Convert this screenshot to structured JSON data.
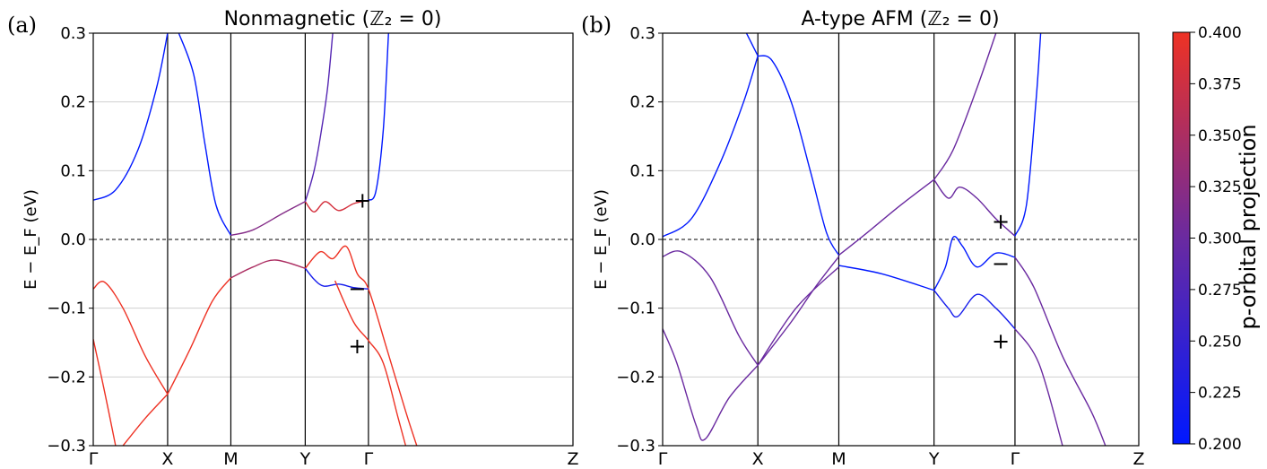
{
  "chart_data": [
    {
      "panel": "(a)",
      "type": "line",
      "title": "Nonmagnetic (ℤ₂ = 0)",
      "ylabel": "E − E_F (eV)",
      "ylim": [
        -0.3,
        0.3
      ],
      "yticks": [
        "0.3",
        "0.2",
        "0.1",
        "0.0",
        "−0.1",
        "−0.2",
        "−0.3"
      ],
      "high_symmetry": [
        {
          "label": "Γ",
          "k": 0.0
        },
        {
          "label": "X",
          "k": 1.0
        },
        {
          "label": "M",
          "k": 1.85
        },
        {
          "label": "Y",
          "k": 2.85
        },
        {
          "label": "Γ",
          "k": 3.7
        },
        {
          "label": "Z",
          "k": 6.45
        }
      ],
      "fermi_level": 0.0,
      "series": [
        {
          "projection": 0.2,
          "points": [
            [
              0,
              0.057
            ],
            [
              0.3,
              0.072
            ],
            [
              0.6,
              0.13
            ],
            [
              0.85,
              0.22
            ],
            [
              1.0,
              0.3
            ]
          ]
        },
        {
          "projection": 0.2,
          "points": [
            [
              1.15,
              0.3
            ],
            [
              1.35,
              0.24
            ],
            [
              1.5,
              0.14
            ],
            [
              1.65,
              0.05
            ],
            [
              1.85,
              0.006
            ]
          ]
        },
        {
          "projection": 0.32,
          "points": [
            [
              1.85,
              0.006
            ],
            [
              2.15,
              0.014
            ],
            [
              2.55,
              0.038
            ],
            [
              2.85,
              0.055
            ]
          ]
        },
        {
          "projection": 0.38,
          "points": [
            [
              2.85,
              0.055
            ],
            [
              2.97,
              0.04
            ],
            [
              3.12,
              0.055
            ],
            [
              3.3,
              0.042
            ],
            [
              3.5,
              0.052
            ],
            [
              3.7,
              0.057
            ]
          ]
        },
        {
          "projection": 0.28,
          "points": [
            [
              2.85,
              0.055
            ],
            [
              2.97,
              0.1
            ],
            [
              3.07,
              0.16
            ],
            [
              3.15,
              0.22
            ],
            [
              3.22,
              0.3
            ]
          ]
        },
        {
          "projection": 0.2,
          "points": [
            [
              3.7,
              0.057
            ],
            [
              3.8,
              0.07
            ],
            [
              3.9,
              0.16
            ],
            [
              3.97,
              0.3
            ]
          ]
        },
        {
          "projection": 0.4,
          "points": [
            [
              0,
              -0.072
            ],
            [
              0.15,
              -0.062
            ],
            [
              0.4,
              -0.1
            ],
            [
              0.7,
              -0.17
            ],
            [
              1.0,
              -0.225
            ]
          ]
        },
        {
          "projection": 0.4,
          "points": [
            [
              1.0,
              -0.225
            ],
            [
              1.3,
              -0.16
            ],
            [
              1.6,
              -0.09
            ],
            [
              1.85,
              -0.056
            ]
          ]
        },
        {
          "projection": 0.35,
          "points": [
            [
              1.85,
              -0.056
            ],
            [
              2.15,
              -0.04
            ],
            [
              2.45,
              -0.03
            ],
            [
              2.85,
              -0.042
            ]
          ]
        },
        {
          "projection": 0.4,
          "points": [
            [
              2.85,
              -0.042
            ],
            [
              3.05,
              -0.018
            ],
            [
              3.22,
              -0.028
            ],
            [
              3.4,
              -0.01
            ],
            [
              3.55,
              -0.05
            ],
            [
              3.7,
              -0.072
            ],
            [
              3.95,
              -0.16
            ],
            [
              4.2,
              -0.25
            ],
            [
              4.35,
              -0.3
            ]
          ]
        },
        {
          "projection": 0.22,
          "points": [
            [
              2.85,
              -0.042
            ],
            [
              2.97,
              -0.058
            ],
            [
              3.1,
              -0.068
            ],
            [
              3.3,
              -0.065
            ],
            [
              3.5,
              -0.07
            ],
            [
              3.7,
              -0.072
            ]
          ]
        },
        {
          "projection": 0.4,
          "points": [
            [
              3.25,
              -0.06
            ],
            [
              3.5,
              -0.12
            ],
            [
              3.7,
              -0.147
            ],
            [
              3.9,
              -0.18
            ],
            [
              4.1,
              -0.26
            ],
            [
              4.2,
              -0.3
            ]
          ]
        },
        {
          "projection": 0.4,
          "points": [
            [
              0,
              -0.145
            ],
            [
              0.15,
              -0.22
            ],
            [
              0.3,
              -0.3
            ]
          ]
        },
        {
          "projection": 0.4,
          "points": [
            [
              0.4,
              -0.3
            ],
            [
              0.7,
              -0.26
            ],
            [
              1.0,
              -0.225
            ]
          ]
        }
      ],
      "annotations": [
        {
          "text": "+",
          "k": 3.62,
          "E": 0.057
        },
        {
          "text": "−",
          "k": 3.55,
          "E": -0.072
        },
        {
          "text": "+",
          "k": 3.55,
          "E": -0.155
        }
      ]
    },
    {
      "panel": "(b)",
      "type": "line",
      "title": "A-type AFM (ℤ₂ = 0)",
      "ylabel": "E − E_F (eV)",
      "ylim": [
        -0.3,
        0.3
      ],
      "yticks": [
        "0.3",
        "0.2",
        "0.1",
        "0.0",
        "−0.1",
        "−0.2",
        "−0.3"
      ],
      "high_symmetry": [
        {
          "label": "Γ",
          "k": 0.0
        },
        {
          "label": "X",
          "k": 1.0
        },
        {
          "label": "M",
          "k": 1.85
        },
        {
          "label": "Y",
          "k": 2.85
        },
        {
          "label": "Γ",
          "k": 3.7
        },
        {
          "label": "Z",
          "k": 5.0
        }
      ],
      "fermi_level": 0.0,
      "series": [
        {
          "projection": 0.2,
          "points": [
            [
              0,
              0.004
            ],
            [
              0.3,
              0.03
            ],
            [
              0.6,
              0.11
            ],
            [
              0.85,
              0.2
            ],
            [
              1.0,
              0.267
            ]
          ]
        },
        {
          "projection": 0.2,
          "points": [
            [
              0.88,
              0.3
            ],
            [
              1.0,
              0.267
            ]
          ]
        },
        {
          "projection": 0.2,
          "points": [
            [
              1.0,
              0.267
            ],
            [
              1.15,
              0.26
            ],
            [
              1.35,
              0.2
            ],
            [
              1.55,
              0.1
            ],
            [
              1.72,
              0.01
            ],
            [
              1.85,
              -0.023
            ]
          ]
        },
        {
          "projection": 0.3,
          "points": [
            [
              1.85,
              -0.023
            ],
            [
              2.15,
              0.01
            ],
            [
              2.5,
              0.05
            ],
            [
              2.85,
              0.087
            ]
          ]
        },
        {
          "projection": 0.3,
          "points": [
            [
              2.85,
              0.087
            ],
            [
              3.0,
              0.06
            ],
            [
              3.12,
              0.076
            ],
            [
              3.3,
              0.06
            ],
            [
              3.5,
              0.03
            ],
            [
              3.7,
              0.005
            ]
          ]
        },
        {
          "projection": 0.3,
          "points": [
            [
              2.85,
              0.087
            ],
            [
              3.05,
              0.13
            ],
            [
              3.3,
              0.22
            ],
            [
              3.5,
              0.3
            ]
          ]
        },
        {
          "projection": 0.2,
          "points": [
            [
              3.7,
              0.005
            ],
            [
              3.82,
              0.05
            ],
            [
              3.92,
              0.2
            ],
            [
              3.97,
              0.3
            ]
          ]
        },
        {
          "projection": 0.3,
          "points": [
            [
              0,
              -0.025
            ],
            [
              0.2,
              -0.018
            ],
            [
              0.5,
              -0.055
            ],
            [
              0.8,
              -0.14
            ],
            [
              1.0,
              -0.183
            ]
          ]
        },
        {
          "projection": 0.3,
          "points": [
            [
              1.0,
              -0.183
            ],
            [
              1.4,
              -0.1
            ],
            [
              1.85,
              -0.04
            ]
          ]
        },
        {
          "projection": 0.2,
          "points": [
            [
              1.85,
              -0.038
            ],
            [
              2.3,
              -0.05
            ],
            [
              2.85,
              -0.074
            ]
          ]
        },
        {
          "projection": 0.2,
          "points": [
            [
              2.85,
              -0.074
            ],
            [
              2.97,
              -0.04
            ],
            [
              3.05,
              0.003
            ],
            [
              3.15,
              -0.01
            ],
            [
              3.3,
              -0.04
            ],
            [
              3.5,
              -0.02
            ],
            [
              3.7,
              -0.026
            ]
          ]
        },
        {
          "projection": 0.22,
          "points": [
            [
              2.85,
              -0.074
            ],
            [
              3.0,
              -0.1
            ],
            [
              3.1,
              -0.112
            ],
            [
              3.3,
              -0.08
            ],
            [
              3.5,
              -0.1
            ],
            [
              3.7,
              -0.13
            ]
          ]
        },
        {
          "projection": 0.3,
          "points": [
            [
              3.7,
              -0.026
            ],
            [
              3.9,
              -0.07
            ],
            [
              4.2,
              -0.17
            ],
            [
              4.5,
              -0.25
            ],
            [
              4.65,
              -0.3
            ]
          ]
        },
        {
          "projection": 0.3,
          "points": [
            [
              3.7,
              -0.13
            ],
            [
              3.95,
              -0.18
            ],
            [
              4.2,
              -0.3
            ]
          ]
        },
        {
          "projection": 0.3,
          "points": [
            [
              0,
              -0.13
            ],
            [
              0.15,
              -0.18
            ],
            [
              0.35,
              -0.27
            ],
            [
              0.45,
              -0.29
            ],
            [
              0.7,
              -0.23
            ],
            [
              1.0,
              -0.183
            ]
          ]
        },
        {
          "projection": 0.3,
          "points": [
            [
              1.0,
              -0.183
            ],
            [
              1.35,
              -0.12
            ],
            [
              1.6,
              -0.07
            ],
            [
              1.85,
              -0.025
            ]
          ]
        }
      ],
      "annotations": [
        {
          "text": "+",
          "k": 3.55,
          "E": 0.026
        },
        {
          "text": "−",
          "k": 3.55,
          "E": -0.035
        },
        {
          "text": "+",
          "k": 3.55,
          "E": -0.148
        }
      ]
    }
  ],
  "colorbar": {
    "title": "p-orbital projection",
    "min": 0.2,
    "max": 0.4,
    "low_color": "#0018ff",
    "mid_color": "#6a2aa0",
    "high_color": "#ee3224",
    "ticks": [
      "0.400",
      "0.375",
      "0.350",
      "0.325",
      "0.300",
      "0.275",
      "0.250",
      "0.225",
      "0.200"
    ]
  }
}
